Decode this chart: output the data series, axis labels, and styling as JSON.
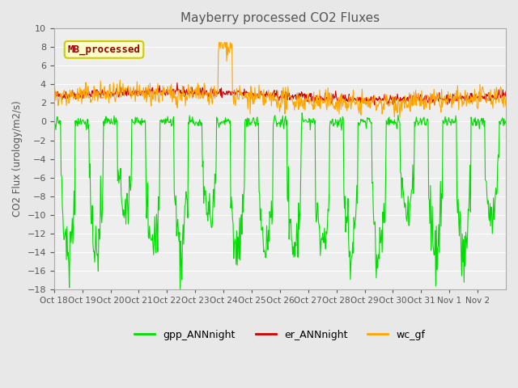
{
  "title": "Mayberry processed CO2 Fluxes",
  "ylabel": "CO2 Flux (urology/m2/s)",
  "ylim": [
    -18,
    10
  ],
  "yticks": [
    -18,
    -16,
    -14,
    -12,
    -10,
    -8,
    -6,
    -4,
    -2,
    0,
    2,
    4,
    6,
    8,
    10
  ],
  "xtick_labels": [
    "Oct 18",
    "Oct 19",
    "Oct 20",
    "Oct 21",
    "Oct 22",
    "Oct 23",
    "Oct 24",
    "Oct 25",
    "Oct 26",
    "Oct 27",
    "Oct 28",
    "Oct 29",
    "Oct 30",
    "Oct 31",
    "Nov 1",
    "Nov 2"
  ],
  "series": {
    "gpp_ANNnight": {
      "color": "#00dd00",
      "linewidth": 0.8
    },
    "er_ANNnight": {
      "color": "#cc0000",
      "linewidth": 0.8
    },
    "wc_gf": {
      "color": "#ffa500",
      "linewidth": 0.8
    }
  },
  "inset_label": "MB_processed",
  "inset_label_color": "#990000",
  "inset_box_facecolor": "#ffffcc",
  "inset_box_edgecolor": "#cccc00",
  "background_color": "#e8e8e8",
  "plot_bg_color": "#eeeeee",
  "title_color": "#555555",
  "tick_color": "#555555",
  "grid_color": "#ffffff",
  "legend_items": [
    "gpp_ANNnight",
    "er_ANNnight",
    "wc_gf"
  ],
  "legend_colors": [
    "#00dd00",
    "#cc0000",
    "#ffa500"
  ],
  "seed": 42
}
